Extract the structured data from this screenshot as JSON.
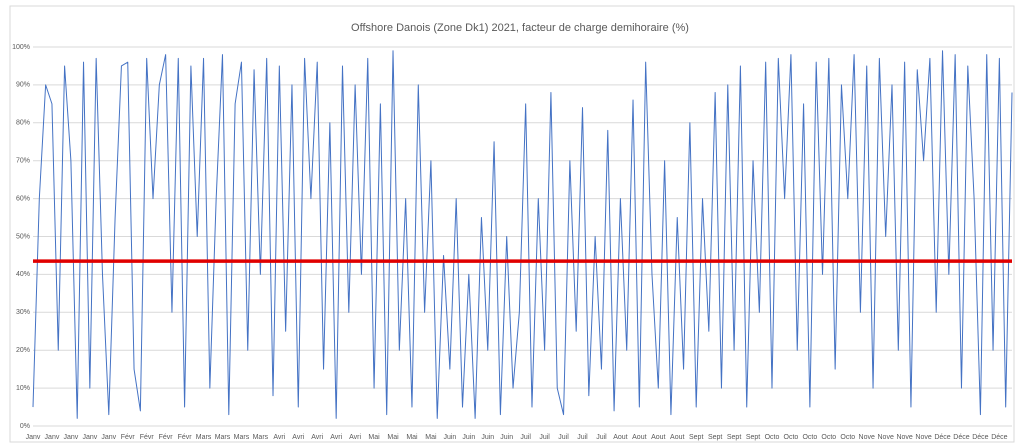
{
  "chart_data": {
    "type": "line",
    "title": "Offshore Danois (Zone Dk1) 2021, facteur de charge demihoraire (%)",
    "categories": [
      "Janv",
      null,
      null,
      "Janv",
      null,
      null,
      "Janv",
      null,
      null,
      "Janv",
      null,
      null,
      "Janv",
      null,
      null,
      "Févr",
      null,
      null,
      "Févr",
      null,
      null,
      "Févr",
      null,
      null,
      "Févr",
      null,
      null,
      "Mars",
      null,
      null,
      "Mars",
      null,
      null,
      "Mars",
      null,
      null,
      "Mars",
      null,
      null,
      "Avri",
      null,
      null,
      "Avri",
      null,
      null,
      "Avri",
      null,
      null,
      "Avri",
      null,
      null,
      "Avri",
      null,
      null,
      "Mai",
      null,
      null,
      "Mai",
      null,
      null,
      "Mai",
      null,
      null,
      "Mai",
      null,
      null,
      "Juin",
      null,
      null,
      "Juin",
      null,
      null,
      "Juin",
      null,
      null,
      "Juin",
      null,
      null,
      "Juil",
      null,
      null,
      "Juil",
      null,
      null,
      "Juil",
      null,
      null,
      "Juil",
      null,
      null,
      "Juil",
      null,
      null,
      "Aout",
      null,
      null,
      "Aout",
      null,
      null,
      "Aout",
      null,
      null,
      "Aout",
      null,
      null,
      "Sept",
      null,
      null,
      "Sept",
      null,
      null,
      "Sept",
      null,
      null,
      "Sept",
      null,
      null,
      "Octo",
      null,
      null,
      "Octo",
      null,
      null,
      "Octo",
      null,
      null,
      "Octo",
      null,
      null,
      "Octo",
      null,
      null,
      "Nove",
      null,
      null,
      "Nove",
      null,
      null,
      "Nove",
      null,
      null,
      "Nove",
      null,
      null,
      "Déce",
      null,
      null,
      "Déce",
      null,
      null,
      "Déce",
      null,
      null,
      "Déce",
      null,
      null
    ],
    "series": [
      {
        "color": "#4472c4",
        "values": [
          5,
          60,
          90,
          85,
          20,
          95,
          70,
          2,
          96,
          10,
          97,
          40,
          3,
          55,
          95,
          96,
          15,
          4,
          97,
          60,
          90,
          98,
          30,
          97,
          5,
          95,
          50,
          97,
          10,
          60,
          98,
          3,
          85,
          96,
          20,
          94,
          40,
          97,
          8,
          95,
          25,
          90,
          5,
          97,
          60,
          96,
          15,
          80,
          2,
          95,
          30,
          90,
          40,
          97,
          10,
          85,
          3,
          99,
          20,
          60,
          5,
          90,
          30,
          70,
          2,
          45,
          15,
          60,
          5,
          40,
          2,
          55,
          20,
          75,
          3,
          50,
          10,
          30,
          85,
          5,
          60,
          20,
          88,
          10,
          3,
          70,
          25,
          84,
          8,
          50,
          15,
          78,
          4,
          60,
          20,
          86,
          5,
          96,
          40,
          10,
          70,
          3,
          55,
          15,
          80,
          5,
          60,
          25,
          88,
          10,
          90,
          20,
          95,
          5,
          70,
          30,
          96,
          10,
          97,
          60,
          98,
          20,
          85,
          5,
          96,
          40,
          97,
          15,
          90,
          60,
          98,
          30,
          95,
          10,
          97,
          50,
          90,
          20,
          96,
          5,
          94,
          70,
          97,
          30,
          99,
          40,
          98,
          10,
          95,
          60,
          3,
          98,
          20,
          97,
          5,
          88
        ]
      }
    ],
    "reference_line": {
      "value": 43.5,
      "color": "#e00000"
    },
    "ylim": [
      0,
      100
    ],
    "yticks": [
      {
        "value": 0,
        "label": "0%"
      },
      {
        "value": 10,
        "label": "10%"
      },
      {
        "value": 20,
        "label": "20%"
      },
      {
        "value": 30,
        "label": "30%"
      },
      {
        "value": 40,
        "label": "40%"
      },
      {
        "value": 50,
        "label": "50%"
      },
      {
        "value": 60,
        "label": "60%"
      },
      {
        "value": 70,
        "label": "70%"
      },
      {
        "value": 80,
        "label": "80%"
      },
      {
        "value": 90,
        "label": "90%"
      },
      {
        "value": 100,
        "label": "100%"
      }
    ],
    "grid": true
  }
}
